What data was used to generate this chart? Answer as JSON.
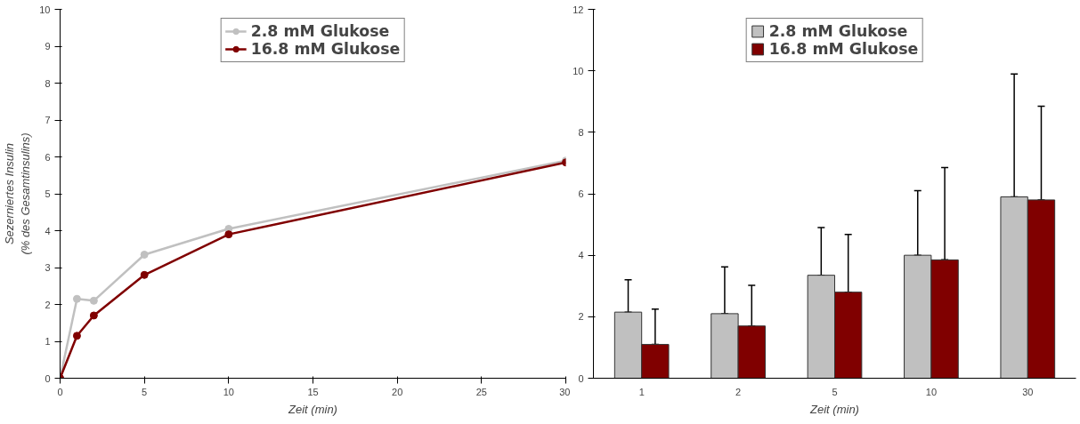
{
  "chart_data": [
    {
      "type": "line",
      "xlabel": "Zeit (min)",
      "ylabel": "Sezerniertes Insulin\n(% des Gesamtinsulins)",
      "x": [
        0,
        1,
        2,
        5,
        10,
        30
      ],
      "series": [
        {
          "name": "2.8 mM Glukose",
          "color": "#c0c0c0",
          "values": [
            0,
            2.15,
            2.1,
            3.35,
            4.05,
            5.9
          ]
        },
        {
          "name": "16.8 mM Glukose",
          "color": "#800000",
          "values": [
            0,
            1.15,
            1.7,
            2.8,
            3.9,
            5.85
          ]
        }
      ],
      "xlim": [
        0,
        30
      ],
      "xticks": [
        0,
        5,
        10,
        15,
        20,
        25,
        30
      ],
      "ylim": [
        0,
        10
      ],
      "yticks": [
        0,
        1,
        2,
        3,
        4,
        5,
        6,
        7,
        8,
        9,
        10
      ],
      "marker": "circle",
      "line_style": "solid",
      "grid": false,
      "legend": "top"
    },
    {
      "type": "bar",
      "xlabel": "Zeit (min)",
      "categories": [
        "1",
        "2",
        "5",
        "10",
        "30"
      ],
      "series": [
        {
          "name": "2.8 mM Glukose",
          "color": "#c0c0c0",
          "values": [
            2.15,
            2.1,
            3.35,
            4.0,
            5.9
          ],
          "errors": [
            [
              2.15,
              3.2
            ],
            [
              2.1,
              3.62
            ],
            [
              3.35,
              4.9
            ],
            [
              4.0,
              6.1
            ],
            [
              5.9,
              9.9
            ]
          ]
        },
        {
          "name": "16.8 mM Glukose",
          "color": "#800000",
          "values": [
            1.1,
            1.7,
            2.8,
            3.85,
            5.8
          ],
          "errors": [
            [
              1.1,
              2.25
            ],
            [
              1.7,
              3.02
            ],
            [
              2.8,
              4.68
            ],
            [
              3.85,
              6.85
            ],
            [
              5.8,
              8.85
            ]
          ]
        }
      ],
      "ylim": [
        0,
        12
      ],
      "yticks": [
        0,
        2,
        4,
        6,
        8,
        10,
        12
      ],
      "grid": false,
      "legend": "top"
    }
  ]
}
